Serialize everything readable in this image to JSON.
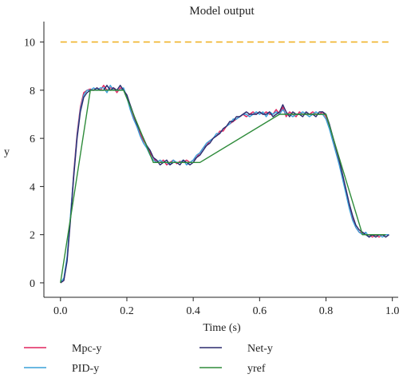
{
  "chart_data": {
    "type": "line",
    "title": "Model output",
    "xlabel": "Time (s)",
    "ylabel": "y",
    "xlim": [
      -0.05,
      1.02
    ],
    "ylim": [
      -0.6,
      10.85
    ],
    "xticks": [
      0.0,
      0.2,
      0.4,
      0.6,
      0.8,
      1.0
    ],
    "xtick_labels": [
      "0.0",
      "0.2",
      "0.4",
      "0.6",
      "0.8",
      "1.0"
    ],
    "yticks": [
      0,
      2,
      4,
      6,
      8,
      10
    ],
    "ytick_labels": [
      "0",
      "2",
      "4",
      "6",
      "8",
      "10"
    ],
    "grid": false,
    "legend": {
      "position": "bottom",
      "columns": 2
    },
    "reference_line": {
      "y": 10,
      "color": "#f0b429",
      "style": "dashed"
    },
    "series": [
      {
        "name": "Mpc-y",
        "color": "#e0245e",
        "x": [
          0.0,
          0.01,
          0.02,
          0.03,
          0.04,
          0.05,
          0.06,
          0.07,
          0.08,
          0.09,
          0.1,
          0.11,
          0.12,
          0.13,
          0.14,
          0.15,
          0.16,
          0.17,
          0.18,
          0.19,
          0.2,
          0.21,
          0.22,
          0.23,
          0.24,
          0.25,
          0.26,
          0.27,
          0.28,
          0.29,
          0.3,
          0.31,
          0.32,
          0.33,
          0.34,
          0.35,
          0.36,
          0.37,
          0.38,
          0.39,
          0.4,
          0.41,
          0.42,
          0.43,
          0.44,
          0.45,
          0.46,
          0.47,
          0.48,
          0.49,
          0.5,
          0.51,
          0.52,
          0.53,
          0.54,
          0.55,
          0.56,
          0.57,
          0.58,
          0.59,
          0.6,
          0.61,
          0.62,
          0.63,
          0.64,
          0.65,
          0.66,
          0.67,
          0.68,
          0.69,
          0.7,
          0.71,
          0.72,
          0.73,
          0.74,
          0.75,
          0.76,
          0.77,
          0.78,
          0.79,
          0.8,
          0.81,
          0.82,
          0.83,
          0.84,
          0.85,
          0.86,
          0.87,
          0.88,
          0.89,
          0.9,
          0.91,
          0.92,
          0.93,
          0.94,
          0.95,
          0.96,
          0.97,
          0.98,
          0.99
        ],
        "y": [
          0.0,
          0.1,
          1.0,
          2.7,
          4.6,
          6.2,
          7.3,
          7.9,
          8.0,
          8.05,
          8.0,
          8.1,
          8.0,
          8.2,
          8.0,
          8.1,
          8.1,
          7.9,
          8.1,
          8.0,
          7.8,
          7.3,
          6.9,
          6.5,
          6.2,
          5.9,
          5.7,
          5.4,
          5.2,
          5.0,
          5.0,
          5.1,
          4.9,
          5.0,
          5.1,
          4.95,
          5.05,
          5.0,
          5.1,
          5.0,
          5.1,
          5.2,
          5.4,
          5.6,
          5.7,
          5.9,
          6.0,
          6.1,
          6.3,
          6.3,
          6.5,
          6.6,
          6.7,
          6.8,
          6.9,
          7.0,
          6.9,
          7.0,
          7.1,
          7.0,
          7.1,
          7.0,
          7.1,
          7.0,
          7.0,
          7.2,
          7.0,
          7.3,
          6.9,
          7.1,
          7.0,
          6.9,
          7.1,
          7.0,
          7.0,
          7.0,
          7.1,
          7.0,
          7.0,
          7.1,
          6.9,
          6.5,
          6.0,
          5.5,
          5.0,
          4.4,
          3.8,
          3.2,
          2.7,
          2.3,
          2.1,
          2.1,
          2.0,
          2.0,
          1.9,
          2.0,
          1.9,
          2.0,
          2.0,
          2.0
        ]
      },
      {
        "name": "PID-y",
        "color": "#3aa0d8",
        "x": [
          0.0,
          0.01,
          0.02,
          0.03,
          0.04,
          0.05,
          0.06,
          0.07,
          0.08,
          0.09,
          0.1,
          0.11,
          0.12,
          0.13,
          0.14,
          0.15,
          0.16,
          0.17,
          0.18,
          0.19,
          0.2,
          0.21,
          0.22,
          0.23,
          0.24,
          0.25,
          0.26,
          0.27,
          0.28,
          0.29,
          0.3,
          0.31,
          0.32,
          0.33,
          0.34,
          0.35,
          0.36,
          0.37,
          0.38,
          0.39,
          0.4,
          0.41,
          0.42,
          0.43,
          0.44,
          0.45,
          0.46,
          0.47,
          0.48,
          0.49,
          0.5,
          0.51,
          0.52,
          0.53,
          0.54,
          0.55,
          0.56,
          0.57,
          0.58,
          0.59,
          0.6,
          0.61,
          0.62,
          0.63,
          0.64,
          0.65,
          0.66,
          0.67,
          0.68,
          0.69,
          0.7,
          0.71,
          0.72,
          0.73,
          0.74,
          0.75,
          0.76,
          0.77,
          0.78,
          0.79,
          0.8,
          0.81,
          0.82,
          0.83,
          0.84,
          0.85,
          0.86,
          0.87,
          0.88,
          0.89,
          0.9,
          0.91,
          0.92,
          0.93,
          0.94,
          0.95,
          0.96,
          0.97,
          0.98,
          0.99
        ],
        "y": [
          0.0,
          0.2,
          1.1,
          2.8,
          4.5,
          6.1,
          7.2,
          7.8,
          8.0,
          8.0,
          8.1,
          8.0,
          8.1,
          8.1,
          7.9,
          8.2,
          8.0,
          8.0,
          8.0,
          8.1,
          7.7,
          7.2,
          6.8,
          6.5,
          6.1,
          5.8,
          5.6,
          5.3,
          5.1,
          5.0,
          5.1,
          5.0,
          5.0,
          4.9,
          5.1,
          5.0,
          5.0,
          5.1,
          4.9,
          5.0,
          5.1,
          5.3,
          5.4,
          5.6,
          5.8,
          5.9,
          6.0,
          6.2,
          6.2,
          6.4,
          6.5,
          6.6,
          6.8,
          6.8,
          6.9,
          7.0,
          7.0,
          6.9,
          7.0,
          7.1,
          7.0,
          7.1,
          6.9,
          7.1,
          7.0,
          7.1,
          7.0,
          7.2,
          7.0,
          7.0,
          6.9,
          7.0,
          7.0,
          7.1,
          7.0,
          6.9,
          7.0,
          7.1,
          7.0,
          7.0,
          6.8,
          6.4,
          5.9,
          5.4,
          4.9,
          4.3,
          3.7,
          3.1,
          2.6,
          2.3,
          2.1,
          2.0,
          2.1,
          1.9,
          2.0,
          2.0,
          2.0,
          1.9,
          2.0,
          2.0
        ]
      },
      {
        "name": "Net-y",
        "color": "#2b2a6e",
        "x": [
          0.0,
          0.01,
          0.02,
          0.03,
          0.04,
          0.05,
          0.06,
          0.07,
          0.08,
          0.09,
          0.1,
          0.11,
          0.12,
          0.13,
          0.14,
          0.15,
          0.16,
          0.17,
          0.18,
          0.19,
          0.2,
          0.21,
          0.22,
          0.23,
          0.24,
          0.25,
          0.26,
          0.27,
          0.28,
          0.29,
          0.3,
          0.31,
          0.32,
          0.33,
          0.34,
          0.35,
          0.36,
          0.37,
          0.38,
          0.39,
          0.4,
          0.41,
          0.42,
          0.43,
          0.44,
          0.45,
          0.46,
          0.47,
          0.48,
          0.49,
          0.5,
          0.51,
          0.52,
          0.53,
          0.54,
          0.55,
          0.56,
          0.57,
          0.58,
          0.59,
          0.6,
          0.61,
          0.62,
          0.63,
          0.64,
          0.65,
          0.66,
          0.67,
          0.68,
          0.69,
          0.7,
          0.71,
          0.72,
          0.73,
          0.74,
          0.75,
          0.76,
          0.77,
          0.78,
          0.79,
          0.8,
          0.81,
          0.82,
          0.83,
          0.84,
          0.85,
          0.86,
          0.87,
          0.88,
          0.89,
          0.9,
          0.91,
          0.92,
          0.93,
          0.94,
          0.95,
          0.96,
          0.97,
          0.98,
          0.99
        ],
        "y": [
          0.0,
          0.1,
          0.9,
          2.6,
          4.4,
          6.0,
          7.1,
          7.7,
          7.9,
          8.0,
          8.0,
          8.1,
          8.0,
          8.0,
          8.2,
          8.0,
          8.1,
          8.0,
          8.2,
          8.0,
          7.8,
          7.4,
          7.0,
          6.6,
          6.3,
          6.0,
          5.7,
          5.5,
          5.2,
          5.1,
          4.9,
          5.0,
          5.1,
          4.9,
          5.0,
          5.0,
          4.9,
          5.1,
          5.0,
          4.9,
          5.0,
          5.2,
          5.3,
          5.5,
          5.7,
          5.8,
          6.0,
          6.1,
          6.2,
          6.4,
          6.5,
          6.7,
          6.7,
          6.9,
          6.9,
          7.0,
          7.1,
          7.0,
          7.0,
          7.0,
          7.1,
          7.0,
          7.0,
          7.1,
          6.9,
          7.0,
          7.1,
          7.4,
          7.1,
          6.9,
          7.1,
          7.0,
          7.0,
          6.9,
          7.1,
          7.0,
          7.0,
          6.9,
          7.1,
          7.1,
          7.0,
          6.6,
          6.1,
          5.6,
          5.1,
          4.5,
          3.9,
          3.3,
          2.8,
          2.4,
          2.2,
          2.1,
          2.0,
          1.9,
          2.0,
          1.9,
          2.0,
          2.0,
          1.9,
          2.0
        ]
      },
      {
        "name": "yref",
        "color": "#2e8b3a",
        "x": [
          0.0,
          0.09,
          0.19,
          0.28,
          0.42,
          0.66,
          0.8,
          0.91,
          0.98
        ],
        "y": [
          0.0,
          8.0,
          8.0,
          5.0,
          5.0,
          7.0,
          7.0,
          2.0,
          2.0
        ]
      }
    ]
  }
}
